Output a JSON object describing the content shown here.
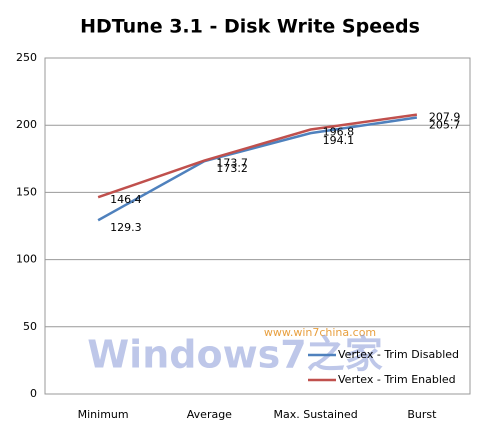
{
  "chart_data": {
    "type": "line",
    "title": "HDTune 3.1 - Disk Write Speeds",
    "categories": [
      "Minimum",
      "Average",
      "Max. Sustained",
      "Burst"
    ],
    "series": [
      {
        "name": "Vertex - Trim Disabled",
        "color": "#4f81bd",
        "values": [
          129.3,
          173.2,
          194.1,
          205.7
        ],
        "value_labels": [
          "129.3",
          "173.2",
          "194.1",
          "205.7"
        ]
      },
      {
        "name": "Vertex - Trim Enabled",
        "color": "#c0504d",
        "values": [
          146.4,
          173.7,
          196.8,
          207.9
        ],
        "value_labels": [
          "146.4",
          "173.7",
          "196.8",
          "207.9"
        ]
      }
    ],
    "ylim": [
      0,
      250
    ],
    "yticks": [
      0,
      50,
      100,
      150,
      200,
      250
    ],
    "grid": true,
    "legend": "lower right",
    "watermark": {
      "brand": "Windows7之家",
      "url": "www.win7china.com"
    }
  }
}
